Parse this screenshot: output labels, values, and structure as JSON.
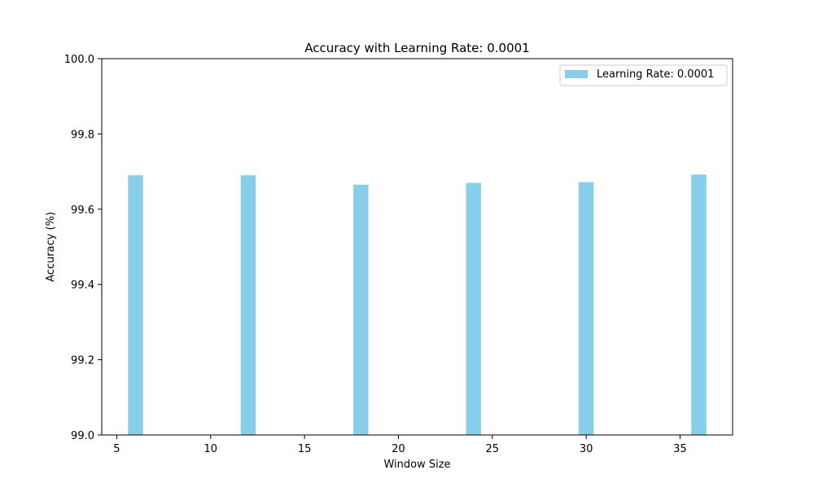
{
  "chart_data": {
    "type": "bar",
    "title": "Accuracy with Learning Rate: 0.0001",
    "xlabel": "Window Size",
    "ylabel": "Accuracy (%)",
    "x": [
      6,
      12,
      18,
      24,
      30,
      36
    ],
    "series": [
      {
        "name": "Learning Rate: 0.0001",
        "values": [
          99.69,
          99.69,
          99.665,
          99.67,
          99.672,
          99.692
        ],
        "color": "#87CEEB"
      }
    ],
    "xlim": [
      4.2,
      37.8
    ],
    "ylim": [
      99.0,
      100.0
    ],
    "xticks": [
      5,
      10,
      15,
      20,
      25,
      30,
      35
    ],
    "xtick_labels": [
      "5",
      "10",
      "15",
      "20",
      "25",
      "30",
      "35"
    ],
    "yticks": [
      99.0,
      99.2,
      99.4,
      99.6,
      99.8,
      100.0
    ],
    "ytick_labels": [
      "99.0",
      "99.2",
      "99.4",
      "99.6",
      "99.8",
      "100.0"
    ],
    "bar_width": 0.8,
    "grid": false,
    "legend_position": "top-right"
  }
}
